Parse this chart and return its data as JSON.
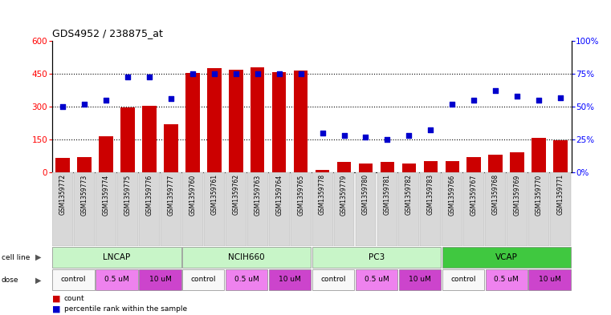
{
  "title": "GDS4952 / 238875_at",
  "samples": [
    "GSM1359772",
    "GSM1359773",
    "GSM1359774",
    "GSM1359775",
    "GSM1359776",
    "GSM1359777",
    "GSM1359760",
    "GSM1359761",
    "GSM1359762",
    "GSM1359763",
    "GSM1359764",
    "GSM1359765",
    "GSM1359778",
    "GSM1359779",
    "GSM1359780",
    "GSM1359781",
    "GSM1359782",
    "GSM1359783",
    "GSM1359766",
    "GSM1359767",
    "GSM1359768",
    "GSM1359769",
    "GSM1359770",
    "GSM1359771"
  ],
  "counts": [
    65,
    70,
    165,
    295,
    305,
    220,
    455,
    475,
    470,
    480,
    460,
    465,
    10,
    45,
    40,
    45,
    40,
    50,
    50,
    70,
    80,
    90,
    155,
    145
  ],
  "percentiles": [
    50,
    52,
    55,
    73,
    73,
    56,
    75,
    75,
    75,
    75,
    75,
    75,
    30,
    28,
    27,
    25,
    28,
    32,
    52,
    55,
    62,
    58,
    55,
    57
  ],
  "bar_color": "#cc0000",
  "dot_color": "#0000cc",
  "ylim_left": [
    0,
    600
  ],
  "ylim_right": [
    0,
    100
  ],
  "yticks_left": [
    0,
    150,
    300,
    450,
    600
  ],
  "yticks_right": [
    0,
    25,
    50,
    75,
    100
  ],
  "ytick_labels_right": [
    "0%",
    "25%",
    "50%",
    "75%",
    "100%"
  ],
  "cell_line_groups": [
    {
      "name": "LNCAP",
      "start": 0,
      "end": 6,
      "color": "#c8f5c8"
    },
    {
      "name": "NCIH660",
      "start": 6,
      "end": 12,
      "color": "#c8f5c8"
    },
    {
      "name": "PC3",
      "start": 12,
      "end": 18,
      "color": "#c8f5c8"
    },
    {
      "name": "VCAP",
      "start": 18,
      "end": 24,
      "color": "#40c840"
    }
  ],
  "dose_groups": [
    {
      "label": "control",
      "start": 0,
      "end": 2,
      "color": "#f8f8f8"
    },
    {
      "label": "0.5 uM",
      "start": 2,
      "end": 4,
      "color": "#ee82ee"
    },
    {
      "label": "10 uM",
      "start": 4,
      "end": 6,
      "color": "#cc44cc"
    },
    {
      "label": "control",
      "start": 6,
      "end": 8,
      "color": "#f8f8f8"
    },
    {
      "label": "0.5 uM",
      "start": 8,
      "end": 10,
      "color": "#ee82ee"
    },
    {
      "label": "10 uM",
      "start": 10,
      "end": 12,
      "color": "#cc44cc"
    },
    {
      "label": "control",
      "start": 12,
      "end": 14,
      "color": "#f8f8f8"
    },
    {
      "label": "0.5 uM",
      "start": 14,
      "end": 16,
      "color": "#ee82ee"
    },
    {
      "label": "10 uM",
      "start": 16,
      "end": 18,
      "color": "#cc44cc"
    },
    {
      "label": "control",
      "start": 18,
      "end": 20,
      "color": "#f8f8f8"
    },
    {
      "label": "0.5 uM",
      "start": 20,
      "end": 22,
      "color": "#ee82ee"
    },
    {
      "label": "10 uM",
      "start": 22,
      "end": 24,
      "color": "#cc44cc"
    }
  ]
}
